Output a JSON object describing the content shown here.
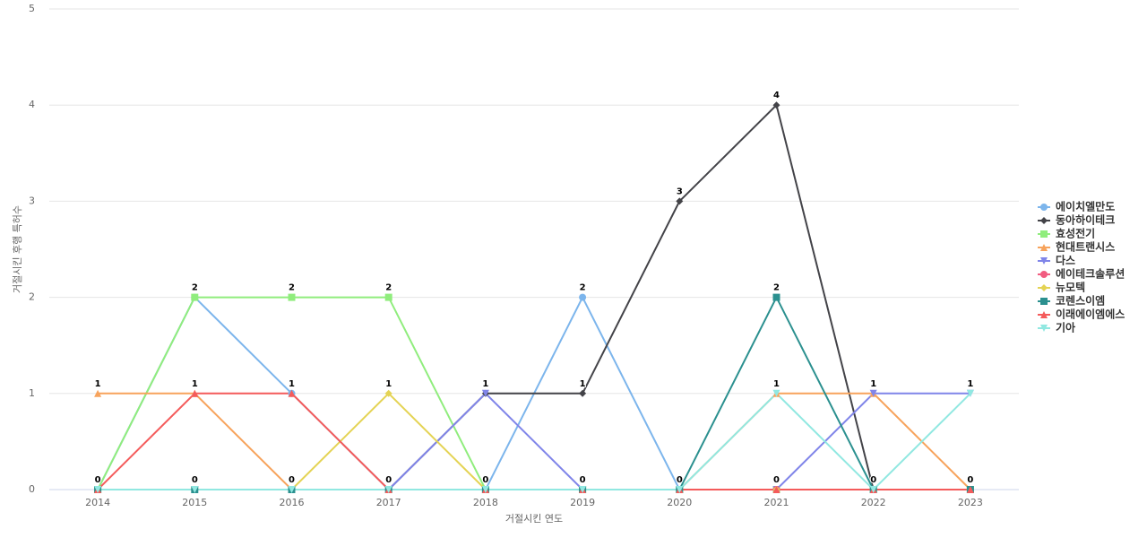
{
  "chart_data": {
    "type": "line",
    "x_label": "거절시킨 연도",
    "y_label": "거절시킨 후행 특허수",
    "categories": [
      "2014",
      "2015",
      "2016",
      "2017",
      "2018",
      "2019",
      "2020",
      "2021",
      "2022",
      "2023"
    ],
    "series": [
      {
        "name": "에이치엘만도",
        "color": "#7cb5ec",
        "values": [
          0,
          2,
          1,
          0,
          0,
          2,
          0,
          0,
          0,
          0
        ]
      },
      {
        "name": "동아하이테크",
        "color": "#434348",
        "values": [
          0,
          0,
          0,
          0,
          1,
          1,
          3,
          4,
          0,
          0
        ]
      },
      {
        "name": "효성전기",
        "color": "#90ed7d",
        "values": [
          0,
          2,
          2,
          2,
          0,
          0,
          0,
          0,
          0,
          0
        ]
      },
      {
        "name": "현대트랜시스",
        "color": "#f7a35c",
        "values": [
          1,
          1,
          0,
          0,
          0,
          0,
          0,
          1,
          1,
          0
        ]
      },
      {
        "name": "다스",
        "color": "#8085e9",
        "values": [
          0,
          0,
          0,
          0,
          1,
          0,
          0,
          0,
          1,
          1
        ]
      },
      {
        "name": "에이테크솔루션",
        "color": "#f15c80",
        "values": [
          0,
          0,
          0,
          0,
          0,
          0,
          0,
          0,
          0,
          0
        ]
      },
      {
        "name": "뉴모텍",
        "color": "#e4d354",
        "values": [
          0,
          0,
          0,
          1,
          0,
          0,
          0,
          0,
          0,
          0
        ]
      },
      {
        "name": "코렌스이엠",
        "color": "#2b908f",
        "values": [
          0,
          0,
          0,
          0,
          0,
          0,
          0,
          2,
          0,
          0
        ]
      },
      {
        "name": "이래에이엠에스",
        "color": "#f45b5b",
        "values": [
          0,
          1,
          1,
          0,
          0,
          0,
          0,
          0,
          0,
          0
        ]
      },
      {
        "name": "기아",
        "color": "#91e8e1",
        "values": [
          0,
          0,
          0,
          0,
          0,
          0,
          0,
          1,
          0,
          1
        ]
      }
    ],
    "ylim": [
      0,
      5
    ],
    "yticks": [
      0,
      1,
      2,
      3,
      4,
      5
    ],
    "grid": true,
    "legend": "right"
  }
}
